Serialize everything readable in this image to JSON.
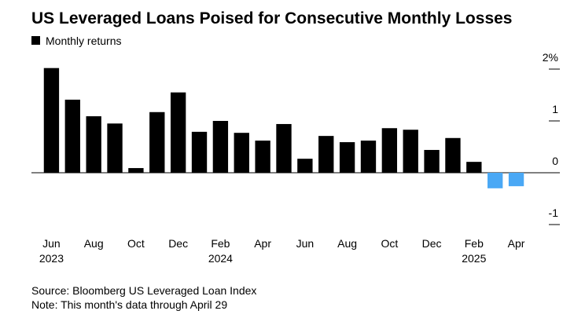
{
  "chart_data": {
    "type": "bar",
    "title": "US Leveraged Loans Poised for Consecutive Monthly Losses",
    "categories": [
      "Jun",
      null,
      "Aug",
      null,
      "Oct",
      null,
      "Dec",
      null,
      "Feb",
      null,
      "Apr",
      null,
      "Jun",
      null,
      "Aug",
      null,
      "Oct",
      null,
      "Dec",
      null,
      "Feb",
      null,
      "Apr"
    ],
    "category_years": [
      "2023",
      null,
      null,
      null,
      null,
      null,
      null,
      null,
      "2024",
      null,
      null,
      null,
      null,
      null,
      null,
      null,
      null,
      null,
      null,
      null,
      "2025",
      null,
      null
    ],
    "series": [
      {
        "name": "Monthly returns",
        "color": "#000000",
        "negative_color": "#4aa8f5",
        "values": [
          2.02,
          1.41,
          1.09,
          0.95,
          0.09,
          1.17,
          1.55,
          0.79,
          1.0,
          0.77,
          0.62,
          0.94,
          0.27,
          0.71,
          0.59,
          0.62,
          0.86,
          0.83,
          0.44,
          0.67,
          0.21,
          -0.3,
          -0.26
        ]
      }
    ],
    "ylim": [
      -1,
      2.25
    ],
    "yticks": [
      {
        "value": 2,
        "label": "2%"
      },
      1,
      0,
      -1
    ],
    "source": "Source: Bloomberg US Leveraged Loan Index",
    "note": "Note: This month's data through April 29"
  }
}
